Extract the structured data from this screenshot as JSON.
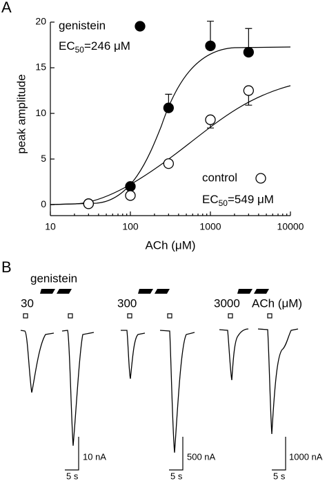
{
  "chart_data": {
    "type": "scatter",
    "panel_label": "A",
    "x_label": "ACh (μM)",
    "y_label": "peak amplitude",
    "log_x": true,
    "xlim": [
      10,
      10000
    ],
    "xticks": [
      10,
      100,
      1000,
      10000
    ],
    "ylim": [
      -1.2,
      20
    ],
    "yticks": [
      0,
      5,
      10,
      15,
      20
    ],
    "series": [
      {
        "name": "genistein",
        "color": "#000000",
        "error_side": "up",
        "x": [
          30,
          100,
          300,
          1000,
          3000
        ],
        "values": [
          0.1,
          2.0,
          10.6,
          17.4,
          16.7
        ],
        "errors": [
          0,
          0,
          1.5,
          2.7,
          2.6
        ],
        "annotation": {
          "prefix": "EC",
          "subscript": "50",
          "text": "=246 μM"
        }
      },
      {
        "name": "control",
        "color": "#ffffff",
        "error_side": "down",
        "x": [
          30,
          100,
          300,
          1000,
          3000
        ],
        "values": [
          0.1,
          1.0,
          4.5,
          9.3,
          12.5
        ],
        "errors": [
          0,
          0,
          0,
          0.9,
          1.6
        ],
        "annotation": {
          "prefix": "EC",
          "subscript": "50",
          "text": "=549 μM"
        }
      }
    ]
  },
  "panel_b": {
    "label": "B",
    "condition": "genistein",
    "concentrations": [
      "30",
      "300",
      "3000"
    ],
    "unit": "ACh (μM)",
    "scale_bars": [
      {
        "amplitude": "10 nA",
        "time": "5 s"
      },
      {
        "amplitude": "500 nA",
        "time": "5 s"
      },
      {
        "amplitude": "1000 nA",
        "time": "5 s"
      }
    ]
  }
}
